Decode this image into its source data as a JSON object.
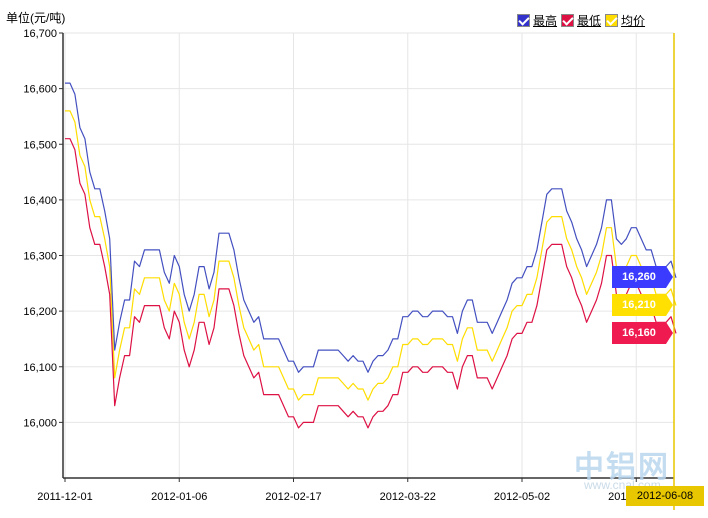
{
  "unit_label": "单位(元/吨)",
  "legend": [
    {
      "label": "最高",
      "color": "#3333cc"
    },
    {
      "label": "最低",
      "color": "#dd1144"
    },
    {
      "label": "均价",
      "color": "#ffdd00"
    }
  ],
  "badges": [
    {
      "value": "16,260",
      "color": "#3b3bff"
    },
    {
      "value": "16,210",
      "color": "#ffe000"
    },
    {
      "value": "16,160",
      "color": "#ee1a50"
    }
  ],
  "cursor_date": "2012-06-08",
  "watermark": {
    "text": "中铝网",
    "url": "www.cnal.com"
  },
  "chart_data": {
    "type": "line",
    "ylim": [
      15900,
      16700
    ],
    "y_ticks": [
      16000,
      16100,
      16200,
      16300,
      16400,
      16500,
      16600,
      16700
    ],
    "x_ticks": [
      {
        "label": "2011-12-01",
        "index": 0
      },
      {
        "label": "2012-01-06",
        "index": 23
      },
      {
        "label": "2012-02-17",
        "index": 46
      },
      {
        "label": "2012-03-22",
        "index": 69
      },
      {
        "label": "2012-05-02",
        "index": 92
      },
      {
        "label": "2012-06-08",
        "index": 115
      }
    ],
    "series": [
      {
        "name": "最高",
        "color": "#4450c0",
        "values": [
          16610,
          16610,
          16590,
          16530,
          16510,
          16450,
          16420,
          16420,
          16380,
          16330,
          16130,
          16180,
          16220,
          16220,
          16290,
          16280,
          16310,
          16310,
          16310,
          16310,
          16270,
          16250,
          16300,
          16280,
          16230,
          16200,
          16230,
          16280,
          16280,
          16240,
          16270,
          16340,
          16340,
          16340,
          16310,
          16260,
          16220,
          16200,
          16180,
          16190,
          16150,
          16150,
          16150,
          16150,
          16130,
          16110,
          16110,
          16090,
          16100,
          16100,
          16100,
          16130,
          16130,
          16130,
          16130,
          16130,
          16120,
          16110,
          16120,
          16110,
          16110,
          16090,
          16110,
          16120,
          16120,
          16130,
          16150,
          16150,
          16190,
          16190,
          16200,
          16200,
          16190,
          16190,
          16200,
          16200,
          16200,
          16190,
          16190,
          16160,
          16200,
          16220,
          16220,
          16180,
          16180,
          16180,
          16160,
          16180,
          16200,
          16220,
          16250,
          16260,
          16260,
          16280,
          16280,
          16310,
          16360,
          16410,
          16420,
          16420,
          16420,
          16380,
          16360,
          16330,
          16310,
          16280,
          16300,
          16320,
          16350,
          16400,
          16400,
          16330,
          16320,
          16330,
          16350,
          16350,
          16330,
          16310,
          16310,
          16280,
          16280,
          16280,
          16290,
          16260
        ]
      },
      {
        "name": "最低",
        "color": "#dd1144",
        "values": [
          16510,
          16510,
          16490,
          16430,
          16410,
          16350,
          16320,
          16320,
          16280,
          16230,
          16030,
          16080,
          16120,
          16120,
          16190,
          16180,
          16210,
          16210,
          16210,
          16210,
          16170,
          16150,
          16200,
          16180,
          16130,
          16100,
          16130,
          16180,
          16180,
          16140,
          16170,
          16240,
          16240,
          16240,
          16210,
          16160,
          16120,
          16100,
          16080,
          16090,
          16050,
          16050,
          16050,
          16050,
          16030,
          16010,
          16010,
          15990,
          16000,
          16000,
          16000,
          16030,
          16030,
          16030,
          16030,
          16030,
          16020,
          16010,
          16020,
          16010,
          16010,
          15990,
          16010,
          16020,
          16020,
          16030,
          16050,
          16050,
          16090,
          16090,
          16100,
          16100,
          16090,
          16090,
          16100,
          16100,
          16100,
          16090,
          16090,
          16060,
          16100,
          16120,
          16120,
          16080,
          16080,
          16080,
          16060,
          16080,
          16100,
          16120,
          16150,
          16160,
          16160,
          16180,
          16180,
          16210,
          16260,
          16310,
          16320,
          16320,
          16320,
          16280,
          16260,
          16230,
          16210,
          16180,
          16200,
          16220,
          16250,
          16300,
          16300,
          16230,
          16220,
          16230,
          16250,
          16250,
          16230,
          16210,
          16210,
          16180,
          16180,
          16180,
          16190,
          16160
        ]
      },
      {
        "name": "均价",
        "color": "#ffdd00",
        "values": [
          16560,
          16560,
          16540,
          16480,
          16460,
          16400,
          16370,
          16370,
          16330,
          16280,
          16080,
          16130,
          16170,
          16170,
          16240,
          16230,
          16260,
          16260,
          16260,
          16260,
          16220,
          16200,
          16250,
          16230,
          16180,
          16150,
          16180,
          16230,
          16230,
          16190,
          16220,
          16290,
          16290,
          16290,
          16260,
          16210,
          16170,
          16150,
          16130,
          16140,
          16100,
          16100,
          16100,
          16100,
          16080,
          16060,
          16060,
          16040,
          16050,
          16050,
          16050,
          16080,
          16080,
          16080,
          16080,
          16080,
          16070,
          16060,
          16070,
          16060,
          16060,
          16040,
          16060,
          16070,
          16070,
          16080,
          16100,
          16100,
          16140,
          16140,
          16150,
          16150,
          16140,
          16140,
          16150,
          16150,
          16150,
          16140,
          16140,
          16110,
          16150,
          16170,
          16170,
          16130,
          16130,
          16130,
          16110,
          16130,
          16150,
          16170,
          16200,
          16210,
          16210,
          16230,
          16230,
          16260,
          16310,
          16360,
          16370,
          16370,
          16370,
          16330,
          16310,
          16280,
          16260,
          16230,
          16250,
          16270,
          16300,
          16350,
          16350,
          16280,
          16270,
          16280,
          16300,
          16300,
          16280,
          16260,
          16260,
          16230,
          16230,
          16230,
          16240,
          16210
        ]
      }
    ]
  }
}
